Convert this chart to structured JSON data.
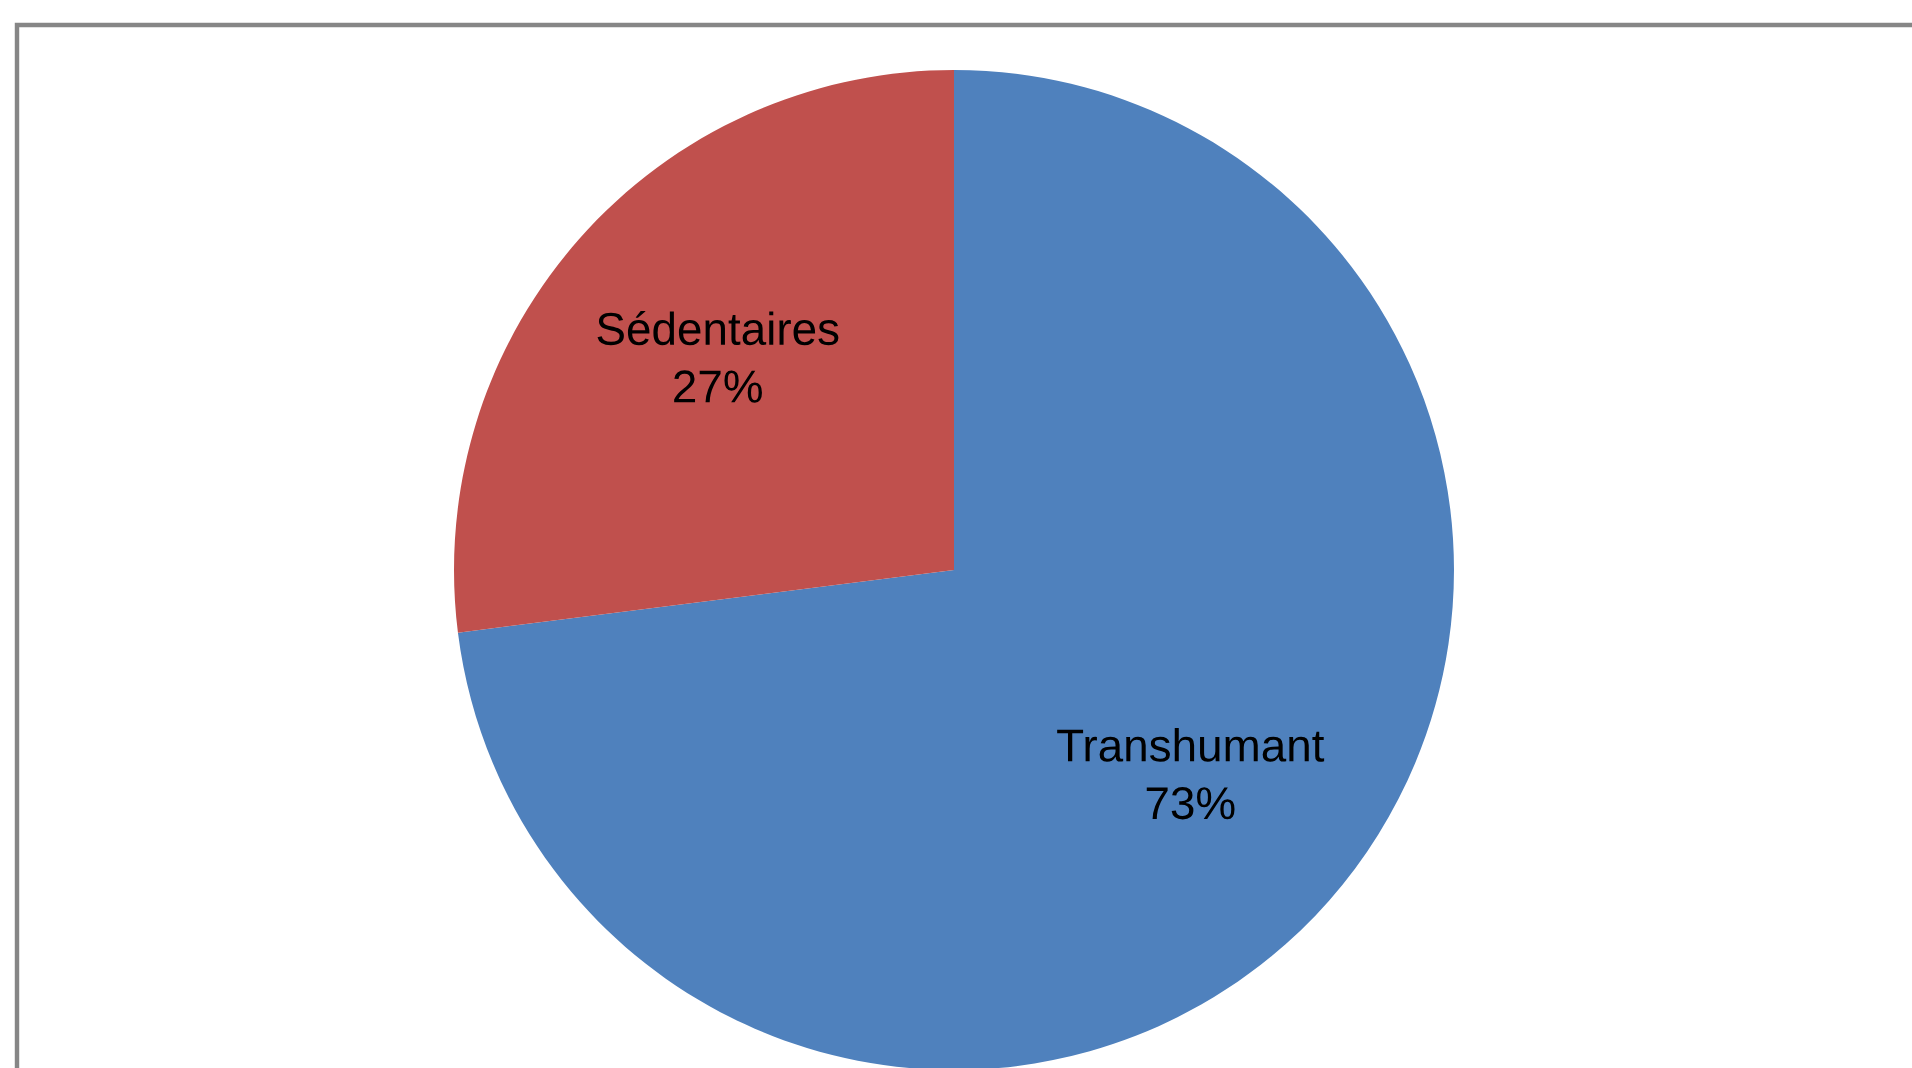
{
  "chart_data": {
    "type": "pie",
    "categories": [
      "Transhumant",
      "Sédentaires"
    ],
    "values": [
      73,
      27
    ],
    "colors": [
      "#4f81bd",
      "#c0504d"
    ],
    "value_labels": [
      "73%",
      "27%"
    ]
  }
}
